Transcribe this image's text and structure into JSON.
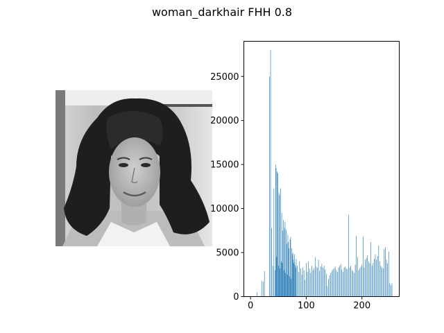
{
  "figure": {
    "title": "woman_darkhair FHH 0.8"
  },
  "image_panel": {
    "description_icon": "grayscale-portrait-photo"
  },
  "chart_data": {
    "type": "bar",
    "title": "",
    "xlabel": "",
    "ylabel": "",
    "xlim": [
      -12,
      267
    ],
    "ylim": [
      0,
      29000
    ],
    "xticks": [
      0,
      100,
      200
    ],
    "yticks": [
      0,
      5000,
      10000,
      15000,
      20000,
      25000
    ],
    "color": "#1f77b4",
    "grid": false,
    "series": [
      {
        "x": [
          12,
          20,
          23,
          25,
          34,
          36,
          38,
          40,
          42,
          44,
          45,
          46,
          47,
          48,
          49,
          50,
          51,
          52,
          53,
          54,
          55,
          56,
          57,
          58,
          59,
          60,
          61,
          62,
          63,
          64,
          65,
          66,
          67,
          68,
          69,
          70,
          71,
          72,
          73,
          74,
          75,
          76,
          77,
          78,
          79,
          80,
          81,
          82,
          84,
          86,
          88,
          90,
          92,
          94,
          96,
          98,
          100,
          102,
          104,
          106,
          108,
          110,
          112,
          114,
          116,
          118,
          120,
          122,
          124,
          126,
          128,
          130,
          132,
          134,
          136,
          138,
          140,
          142,
          144,
          146,
          148,
          150,
          152,
          154,
          156,
          158,
          160,
          162,
          164,
          166,
          168,
          170,
          172,
          174,
          176,
          178,
          180,
          182,
          184,
          186,
          188,
          190,
          192,
          194,
          196,
          198,
          200,
          202,
          204,
          206,
          208,
          210,
          212,
          214,
          216,
          218,
          220,
          222,
          224,
          226,
          228,
          230,
          232,
          234,
          236,
          238,
          240,
          242,
          244,
          246,
          248,
          250,
          252,
          254
        ],
        "values": [
          500,
          1800,
          1700,
          2900,
          25000,
          28000,
          7800,
          3500,
          12300,
          3000,
          15000,
          14600,
          4500,
          14200,
          14000,
          3500,
          11800,
          11500,
          3200,
          12300,
          4000,
          9500,
          3800,
          7500,
          8700,
          3000,
          7800,
          8500,
          2700,
          7600,
          6000,
          2500,
          7000,
          6200,
          5500,
          2300,
          6500,
          6800,
          2000,
          5500,
          4800,
          5000,
          4200,
          3800,
          4800,
          3600,
          3300,
          4300,
          3500,
          2800,
          4000,
          3200,
          2500,
          3300,
          3000,
          1900,
          3800,
          2800,
          4000,
          3200,
          2700,
          3500,
          3000,
          3200,
          4500,
          3400,
          3300,
          4200,
          2900,
          3400,
          3700,
          3300,
          3500,
          3100,
          2600,
          1200,
          2000,
          2400,
          2700,
          2900,
          3100,
          3200,
          3400,
          3000,
          2800,
          3300,
          3500,
          3700,
          3100,
          2800,
          3300,
          3400,
          3200,
          3100,
          9300,
          3300,
          3500,
          3000,
          2900,
          2700,
          3600,
          6900,
          4500,
          3000,
          3200,
          3400,
          3600,
          6800,
          3300,
          4200,
          4400,
          4700,
          4000,
          3800,
          6200,
          3500,
          3800,
          4300,
          4800,
          4200,
          4600,
          5800,
          4000,
          3500,
          3300,
          3200,
          5400,
          5600,
          4200,
          3800,
          5100,
          1500,
          1300,
          1500
        ]
      }
    ]
  }
}
